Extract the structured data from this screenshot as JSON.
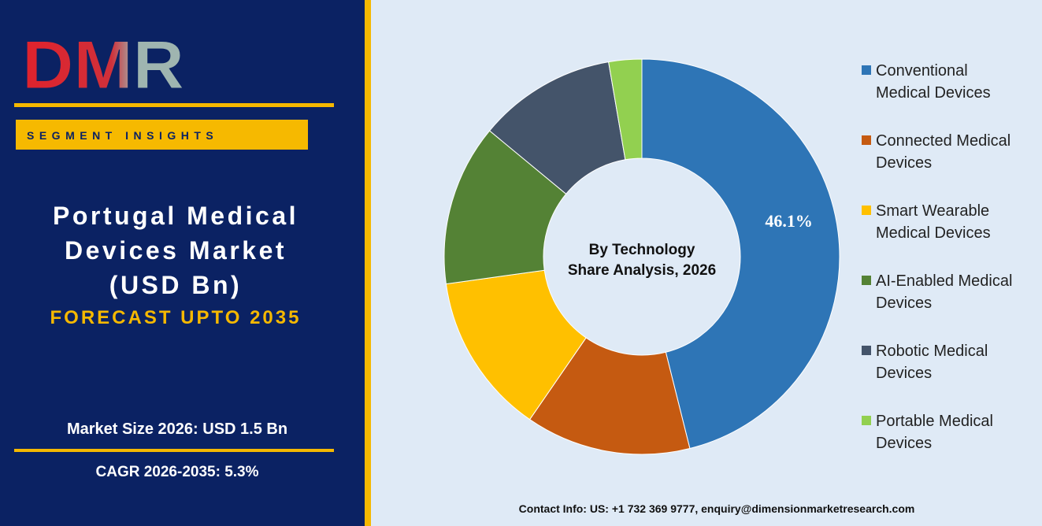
{
  "logo": "DMR",
  "panel": {
    "tag": "SEGMENT INSIGHTS",
    "title": "Portugal Medical Devices Market (USD Bn)",
    "forecast": "FORECAST UPTO 2035",
    "market_size": "Market Size 2026: USD 1.5 Bn",
    "cagr": "CAGR 2026-2035: 5.3%"
  },
  "chart_data": {
    "type": "donut",
    "center_text": [
      "By Technology",
      "Share Analysis, 2026"
    ],
    "categories": [
      "Conventional Medical Devices",
      "Connected Medical Devices",
      "Smart Wearable Medical Devices",
      "AI-Enabled Medical Devices",
      "Robotic Medical Devices",
      "Portable Medical Devices"
    ],
    "values": [
      46.1,
      13.5,
      13.2,
      13.2,
      11.3,
      2.7
    ],
    "value_labels": [
      "46.1%",
      null,
      null,
      null,
      null,
      null
    ],
    "colors": [
      "#2e75b6",
      "#c55a11",
      "#ffc000",
      "#548235",
      "#44546a",
      "#92d050"
    ],
    "legend": "right"
  },
  "footer": "Contact Info: US: +1 732 369 9777, enquiry@dimensionmarketresearch.com"
}
